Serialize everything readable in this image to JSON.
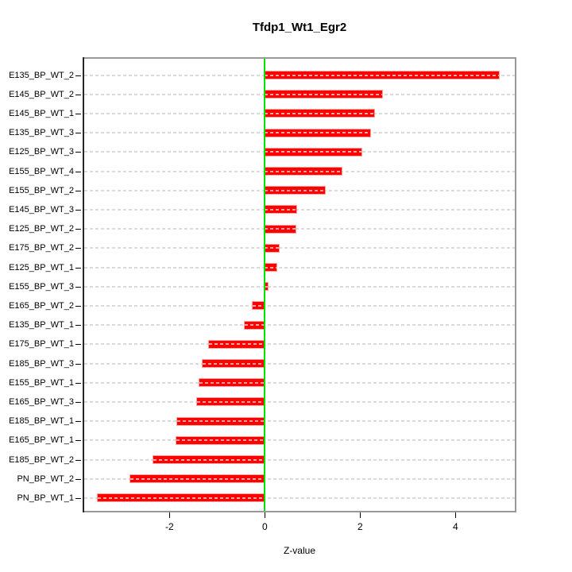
{
  "chart_data": {
    "type": "bar",
    "orientation": "horizontal",
    "title": "Tfdp1_Wt1_Egr2",
    "xlabel": "Z-value",
    "ylabel": "",
    "categories": [
      "E135_BP_WT_2",
      "E145_BP_WT_2",
      "E145_BP_WT_1",
      "E135_BP_WT_3",
      "E125_BP_WT_3",
      "E155_BP_WT_4",
      "E155_BP_WT_2",
      "E145_BP_WT_3",
      "E125_BP_WT_2",
      "E175_BP_WT_2",
      "E125_BP_WT_1",
      "E155_BP_WT_3",
      "E165_BP_WT_2",
      "E135_BP_WT_1",
      "E175_BP_WT_1",
      "E185_BP_WT_3",
      "E155_BP_WT_1",
      "E165_BP_WT_3",
      "E185_BP_WT_1",
      "E165_BP_WT_1",
      "E185_BP_WT_2",
      "PN_BP_WT_2",
      "PN_BP_WT_1"
    ],
    "values": [
      4.92,
      2.47,
      2.29,
      2.21,
      2.03,
      1.62,
      1.26,
      0.66,
      0.64,
      0.29,
      0.24,
      0.06,
      -0.25,
      -0.42,
      -1.17,
      -1.3,
      -1.38,
      -1.42,
      -1.84,
      -1.86,
      -2.34,
      -2.82,
      -3.5
    ],
    "x_ticks": [
      -2,
      0,
      2,
      4
    ],
    "x_tick_labels": [
      "-2",
      "0",
      "2",
      "4"
    ],
    "xlim": [
      -3.82,
      5.25
    ],
    "grid": true,
    "legend_position": null,
    "bar_color": "#ff0000",
    "zero_line_color": "#00e400",
    "grid_color": "#dadada",
    "box_color": "#999999",
    "axis_color": "#262626",
    "text_color": "#000000"
  }
}
